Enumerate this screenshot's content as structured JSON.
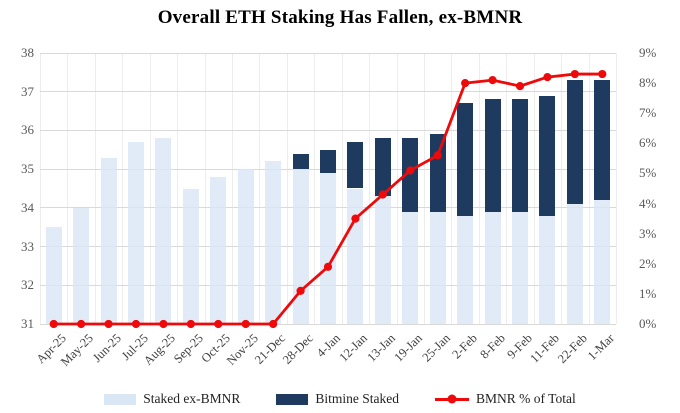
{
  "title": "Overall ETH Staking Has Fallen, ex-BMNR",
  "colors": {
    "staked_ex_bmnr": "#d9e7f5",
    "bitmine_staked": "#1e3a5f",
    "bmnr_line": "#ee0a0a",
    "gridline": "#d9d9d9",
    "axis_text": "#595959"
  },
  "chart_data": {
    "type": "bar",
    "subtype": "stacked-bars-with-line-secondary-axis",
    "title": "Overall ETH Staking Has Fallen, ex-BMNR",
    "categories": [
      "Apr-25",
      "May-25",
      "Jun-25",
      "Jul-25",
      "Aug-25",
      "Sep-25",
      "Oct-25",
      "Nov-25",
      "21-Dec",
      "28-Dec",
      "4-Jan",
      "12-Jan",
      "13-Jan",
      "19-Jan",
      "25-Jan",
      "2-Feb",
      "8-Feb",
      "9-Feb",
      "11-Feb",
      "22-Feb",
      "1-Mar"
    ],
    "series": [
      {
        "name": "Staked ex-BMNR",
        "type": "bar",
        "axis": "left",
        "color": "#d9e7f5",
        "values": [
          33.5,
          34.0,
          35.3,
          35.7,
          35.8,
          34.5,
          34.8,
          35.0,
          35.2,
          35.0,
          34.9,
          34.5,
          34.3,
          33.9,
          33.9,
          33.8,
          33.9,
          33.9,
          33.8,
          34.1,
          34.2
        ]
      },
      {
        "name": "Bitmine Staked",
        "type": "bar",
        "axis": "left",
        "color": "#1e3a5f",
        "values": [
          0,
          0,
          0,
          0,
          0,
          0,
          0,
          0,
          0,
          0.4,
          0.6,
          1.2,
          1.5,
          1.9,
          2.0,
          2.9,
          2.9,
          2.9,
          3.1,
          3.2,
          3.1
        ]
      }
    ],
    "line_series": {
      "name": "BMNR % of Total",
      "type": "line",
      "axis": "right",
      "color": "#ee0a0a",
      "values": [
        0,
        0,
        0,
        0,
        0,
        0,
        0,
        0,
        0,
        1.1,
        1.9,
        3.5,
        4.3,
        5.1,
        5.6,
        8.0,
        8.1,
        7.9,
        8.2,
        8.3,
        8.3
      ]
    },
    "left_axis": {
      "min": 31,
      "max": 38,
      "step": 1,
      "ticks": [
        "31",
        "32",
        "33",
        "34",
        "35",
        "36",
        "37",
        "38"
      ]
    },
    "right_axis": {
      "min": 0,
      "max": 9,
      "step": 1,
      "ticks": [
        "0%",
        "1%",
        "2%",
        "3%",
        "4%",
        "5%",
        "6%",
        "7%",
        "8%",
        "9%"
      ]
    },
    "grid": true,
    "stacked": true,
    "bars_start_at_axis_min": true,
    "legend_position": "bottom",
    "legend": [
      "Staked ex-BMNR",
      "Bitmine Staked",
      "BMNR % of Total"
    ]
  }
}
